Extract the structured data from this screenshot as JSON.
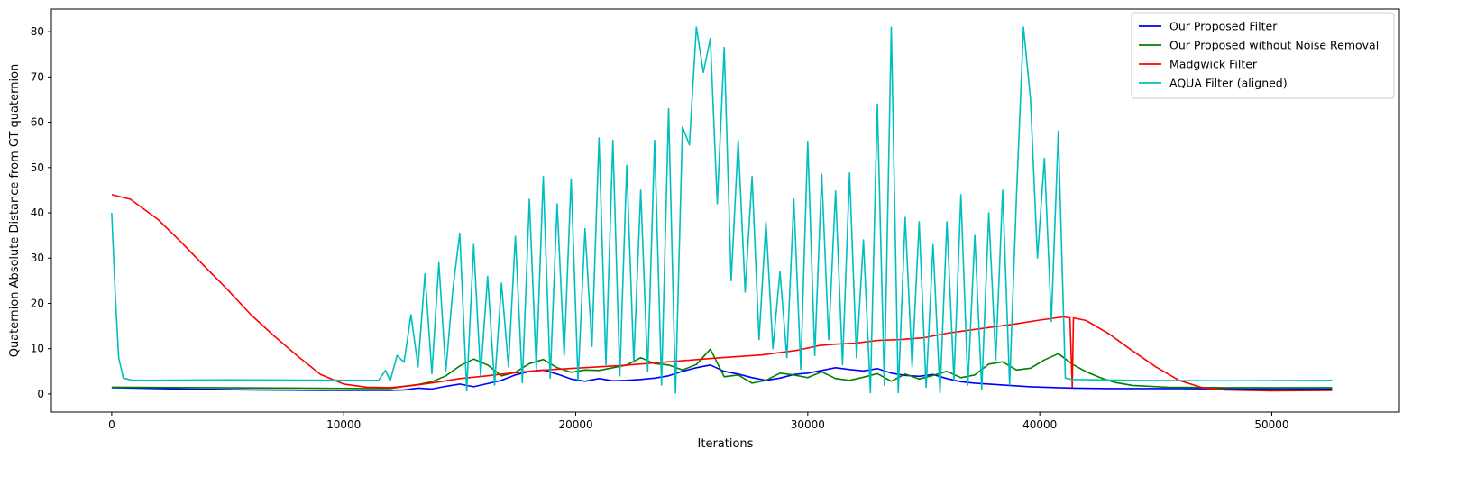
{
  "chart_data": {
    "type": "line",
    "xlabel": "Iterations",
    "ylabel": "Quaternion Absolute Distance from GT quaternion",
    "xlim": [
      -2600,
      55500
    ],
    "ylim": [
      -4,
      85
    ],
    "xticks": [
      0,
      10000,
      20000,
      30000,
      40000,
      50000
    ],
    "yticks": [
      0,
      10,
      20,
      30,
      40,
      50,
      60,
      70,
      80
    ],
    "grid": false,
    "legend_position": "top-right",
    "series": [
      {
        "name": "Our Proposed Filter",
        "color": "#0000ff",
        "points": [
          [
            0,
            1.4
          ],
          [
            3000,
            1.1
          ],
          [
            6000,
            0.9
          ],
          [
            9000,
            0.8
          ],
          [
            12000,
            0.8
          ],
          [
            12600,
            0.9
          ],
          [
            13200,
            1.3
          ],
          [
            13800,
            1.1
          ],
          [
            14400,
            1.7
          ],
          [
            15000,
            2.2
          ],
          [
            15600,
            1.6
          ],
          [
            16200,
            2.3
          ],
          [
            16800,
            3.0
          ],
          [
            17400,
            4.2
          ],
          [
            18000,
            5.0
          ],
          [
            18600,
            5.3
          ],
          [
            19200,
            4.4
          ],
          [
            19800,
            3.3
          ],
          [
            20400,
            2.8
          ],
          [
            21000,
            3.4
          ],
          [
            21600,
            2.9
          ],
          [
            22200,
            3.0
          ],
          [
            22800,
            3.2
          ],
          [
            23400,
            3.5
          ],
          [
            24000,
            4.0
          ],
          [
            24600,
            5.0
          ],
          [
            25200,
            5.8
          ],
          [
            25800,
            6.4
          ],
          [
            26400,
            5.0
          ],
          [
            27000,
            4.4
          ],
          [
            27600,
            3.6
          ],
          [
            28200,
            3.0
          ],
          [
            28800,
            3.5
          ],
          [
            29400,
            4.3
          ],
          [
            30000,
            4.6
          ],
          [
            30600,
            5.2
          ],
          [
            31200,
            5.8
          ],
          [
            31800,
            5.4
          ],
          [
            32400,
            5.1
          ],
          [
            33000,
            5.6
          ],
          [
            33600,
            4.6
          ],
          [
            34200,
            4.1
          ],
          [
            34800,
            3.9
          ],
          [
            35400,
            4.3
          ],
          [
            36000,
            3.4
          ],
          [
            36600,
            2.7
          ],
          [
            37200,
            2.4
          ],
          [
            37800,
            2.2
          ],
          [
            38400,
            2.0
          ],
          [
            39000,
            1.8
          ],
          [
            39600,
            1.6
          ],
          [
            40200,
            1.5
          ],
          [
            40800,
            1.4
          ],
          [
            41500,
            1.3
          ],
          [
            43000,
            1.2
          ],
          [
            46000,
            1.2
          ],
          [
            49000,
            1.1
          ],
          [
            52600,
            1.1
          ]
        ]
      },
      {
        "name": "Our Proposed without Noise Removal",
        "color": "#008000",
        "points": [
          [
            0,
            1.5
          ],
          [
            4000,
            1.4
          ],
          [
            8000,
            1.3
          ],
          [
            11000,
            1.2
          ],
          [
            12000,
            1.2
          ],
          [
            12600,
            1.7
          ],
          [
            13200,
            2.1
          ],
          [
            13800,
            2.7
          ],
          [
            14400,
            4.0
          ],
          [
            15000,
            6.2
          ],
          [
            15600,
            7.7
          ],
          [
            16200,
            6.4
          ],
          [
            16800,
            4.0
          ],
          [
            17400,
            4.8
          ],
          [
            18000,
            6.7
          ],
          [
            18600,
            7.6
          ],
          [
            19200,
            5.8
          ],
          [
            19800,
            4.8
          ],
          [
            20400,
            5.3
          ],
          [
            21000,
            5.2
          ],
          [
            21600,
            5.8
          ],
          [
            22200,
            6.4
          ],
          [
            22800,
            8.0
          ],
          [
            23400,
            6.7
          ],
          [
            24000,
            6.4
          ],
          [
            24600,
            5.3
          ],
          [
            25200,
            6.5
          ],
          [
            25800,
            9.9
          ],
          [
            26400,
            3.8
          ],
          [
            27000,
            4.2
          ],
          [
            27600,
            2.4
          ],
          [
            28200,
            3.0
          ],
          [
            28800,
            4.6
          ],
          [
            29400,
            4.2
          ],
          [
            30000,
            3.6
          ],
          [
            30600,
            4.9
          ],
          [
            31200,
            3.4
          ],
          [
            31800,
            3.0
          ],
          [
            32400,
            3.7
          ],
          [
            33000,
            4.5
          ],
          [
            33600,
            2.8
          ],
          [
            34200,
            4.4
          ],
          [
            34800,
            3.3
          ],
          [
            35400,
            4.1
          ],
          [
            36000,
            5.0
          ],
          [
            36600,
            3.6
          ],
          [
            37200,
            4.2
          ],
          [
            37800,
            6.6
          ],
          [
            38400,
            7.1
          ],
          [
            39000,
            5.3
          ],
          [
            39600,
            5.7
          ],
          [
            40200,
            7.5
          ],
          [
            40800,
            8.9
          ],
          [
            41400,
            6.6
          ],
          [
            42000,
            4.9
          ],
          [
            42600,
            3.6
          ],
          [
            43200,
            2.6
          ],
          [
            44000,
            1.9
          ],
          [
            45500,
            1.5
          ],
          [
            48000,
            1.4
          ],
          [
            52600,
            1.4
          ]
        ]
      },
      {
        "name": "Madgwick Filter",
        "color": "#ff0000",
        "points": [
          [
            0,
            44
          ],
          [
            800,
            43
          ],
          [
            2000,
            38.5
          ],
          [
            3000,
            33.5
          ],
          [
            4000,
            28.2
          ],
          [
            5000,
            23
          ],
          [
            6000,
            17.5
          ],
          [
            7000,
            12.8
          ],
          [
            8000,
            8.4
          ],
          [
            9000,
            4.3
          ],
          [
            10000,
            2.2
          ],
          [
            11000,
            1.5
          ],
          [
            12000,
            1.4
          ],
          [
            13000,
            1.9
          ],
          [
            14000,
            2.6
          ],
          [
            15000,
            3.4
          ],
          [
            16000,
            3.9
          ],
          [
            17000,
            4.5
          ],
          [
            18000,
            5.0
          ],
          [
            19000,
            5.4
          ],
          [
            20000,
            5.7
          ],
          [
            22000,
            6.3
          ],
          [
            24000,
            7.1
          ],
          [
            26000,
            7.9
          ],
          [
            28000,
            8.6
          ],
          [
            29500,
            9.6
          ],
          [
            30500,
            10.7
          ],
          [
            31200,
            11.0
          ],
          [
            32000,
            11.2
          ],
          [
            33000,
            11.8
          ],
          [
            34000,
            12.0
          ],
          [
            35000,
            12.4
          ],
          [
            36000,
            13.4
          ],
          [
            37000,
            14.1
          ],
          [
            38000,
            14.8
          ],
          [
            39000,
            15.5
          ],
          [
            40000,
            16.3
          ],
          [
            41000,
            17.0
          ],
          [
            41300,
            16.8
          ],
          [
            41400,
            1.5
          ],
          [
            41450,
            16.8
          ],
          [
            42000,
            16.2
          ],
          [
            43000,
            13.2
          ],
          [
            44000,
            9.5
          ],
          [
            45000,
            6.0
          ],
          [
            46000,
            3.0
          ],
          [
            47000,
            1.4
          ],
          [
            48000,
            0.9
          ],
          [
            50000,
            0.7
          ],
          [
            52600,
            0.8
          ]
        ]
      },
      {
        "name": "AQUA Filter (aligned)",
        "color": "#00bfbf",
        "points": [
          [
            0,
            40
          ],
          [
            150,
            22
          ],
          [
            300,
            8
          ],
          [
            500,
            3.5
          ],
          [
            900,
            3.0
          ],
          [
            5000,
            3.1
          ],
          [
            11500,
            3.0
          ],
          [
            11800,
            5.2
          ],
          [
            12000,
            2.9
          ],
          [
            12300,
            8.5
          ],
          [
            12600,
            7.0
          ],
          [
            12900,
            17.5
          ],
          [
            13200,
            6.0
          ],
          [
            13500,
            26.5
          ],
          [
            13800,
            4.5
          ],
          [
            14100,
            29
          ],
          [
            14400,
            5.0
          ],
          [
            14700,
            23
          ],
          [
            15000,
            35.5
          ],
          [
            15300,
            0.7
          ],
          [
            15600,
            33
          ],
          [
            15900,
            4.0
          ],
          [
            16200,
            26
          ],
          [
            16500,
            2.0
          ],
          [
            16800,
            24.5
          ],
          [
            17100,
            6.0
          ],
          [
            17400,
            34.8
          ],
          [
            17700,
            2.5
          ],
          [
            18000,
            43
          ],
          [
            18300,
            5.5
          ],
          [
            18600,
            48
          ],
          [
            18900,
            3.5
          ],
          [
            19200,
            42
          ],
          [
            19500,
            8.5
          ],
          [
            19800,
            47.5
          ],
          [
            20100,
            3.0
          ],
          [
            20400,
            36.5
          ],
          [
            20700,
            10.5
          ],
          [
            21000,
            56.5
          ],
          [
            21300,
            6.5
          ],
          [
            21600,
            56
          ],
          [
            21900,
            4.0
          ],
          [
            22200,
            50.5
          ],
          [
            22500,
            7.0
          ],
          [
            22800,
            45
          ],
          [
            23100,
            5.0
          ],
          [
            23400,
            56
          ],
          [
            23700,
            2.0
          ],
          [
            24000,
            63
          ],
          [
            24300,
            0.2
          ],
          [
            24600,
            59
          ],
          [
            24900,
            55
          ],
          [
            25200,
            81
          ],
          [
            25500,
            71
          ],
          [
            25800,
            78.5
          ],
          [
            26100,
            42
          ],
          [
            26400,
            76.5
          ],
          [
            26700,
            25
          ],
          [
            27000,
            56
          ],
          [
            27300,
            22.5
          ],
          [
            27600,
            48
          ],
          [
            27900,
            12
          ],
          [
            28200,
            38
          ],
          [
            28500,
            10
          ],
          [
            28800,
            27
          ],
          [
            29100,
            8.0
          ],
          [
            29400,
            43
          ],
          [
            29700,
            5.5
          ],
          [
            30000,
            55.8
          ],
          [
            30300,
            8.5
          ],
          [
            30600,
            48.5
          ],
          [
            30900,
            12
          ],
          [
            31200,
            44.8
          ],
          [
            31500,
            6.5
          ],
          [
            31800,
            48.8
          ],
          [
            32100,
            8.0
          ],
          [
            32400,
            34
          ],
          [
            32700,
            0.3
          ],
          [
            33000,
            64
          ],
          [
            33300,
            2.0
          ],
          [
            33600,
            81
          ],
          [
            33900,
            0.3
          ],
          [
            34200,
            39
          ],
          [
            34500,
            6.0
          ],
          [
            34800,
            38
          ],
          [
            35100,
            1.5
          ],
          [
            35400,
            33
          ],
          [
            35700,
            0.2
          ],
          [
            36000,
            38
          ],
          [
            36300,
            3.0
          ],
          [
            36600,
            44
          ],
          [
            36900,
            2.0
          ],
          [
            37200,
            35
          ],
          [
            37500,
            1.0
          ],
          [
            37800,
            40
          ],
          [
            38100,
            7.5
          ],
          [
            38400,
            45
          ],
          [
            38700,
            2.0
          ],
          [
            39000,
            44
          ],
          [
            39300,
            81
          ],
          [
            39600,
            65
          ],
          [
            39900,
            30
          ],
          [
            40200,
            52
          ],
          [
            40500,
            16
          ],
          [
            40800,
            58
          ],
          [
            41100,
            3.5
          ],
          [
            41400,
            3.2
          ],
          [
            44000,
            3.0
          ],
          [
            48000,
            2.9
          ],
          [
            52600,
            3.0
          ]
        ]
      }
    ]
  }
}
